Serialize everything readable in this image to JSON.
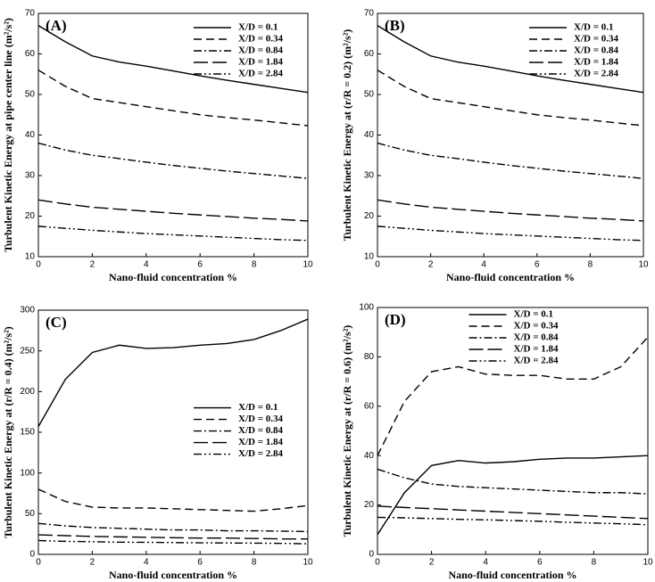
{
  "chart_data": [
    {
      "type": "line",
      "title": "(A)",
      "x_label": "Nano-fluid concentration %",
      "y_label": "Turbulent Kinetic Energy at pipe center line (m²/s²)",
      "x": [
        0,
        1,
        2,
        3,
        4,
        5,
        6,
        7,
        8,
        9,
        10
      ],
      "xlim": [
        0,
        10
      ],
      "xticks": [
        0,
        2,
        4,
        6,
        8,
        10
      ],
      "ylim": [
        10,
        70
      ],
      "yticks": [
        10,
        20,
        30,
        40,
        50,
        60,
        70
      ],
      "legend": "upper right",
      "series": [
        {
          "name": "X/D = 0.1",
          "color": "#000000",
          "dash": "solid",
          "values": [
            67,
            63,
            59.5,
            58,
            57,
            55.8,
            54.6,
            53.5,
            52.5,
            51.5,
            50.5
          ]
        },
        {
          "name": "X/D = 0.34",
          "color": "#000000",
          "dash": "dashed",
          "values": [
            56,
            52,
            49,
            48,
            47,
            46,
            45,
            44.3,
            43.7,
            43,
            42.3
          ]
        },
        {
          "name": "X/D = 0.84",
          "color": "#000000",
          "dash": "dash-dot",
          "values": [
            38,
            36.3,
            35,
            34.2,
            33.3,
            32.5,
            31.8,
            31.1,
            30.5,
            29.9,
            29.3
          ]
        },
        {
          "name": "X/D = 1.84",
          "color": "#000000",
          "dash": "long-dash",
          "values": [
            24,
            23,
            22.2,
            21.7,
            21.2,
            20.7,
            20.3,
            19.9,
            19.5,
            19.2,
            18.8
          ]
        },
        {
          "name": "X/D = 2.84",
          "color": "#000000",
          "dash": "dash-dot-dot",
          "values": [
            17.5,
            17,
            16.5,
            16.1,
            15.7,
            15.4,
            15.1,
            14.8,
            14.5,
            14.2,
            14
          ]
        }
      ]
    },
    {
      "type": "line",
      "title": "(B)",
      "x_label": "Nano-fluid concentration %",
      "y_label": "Turbulent Kinetic Energy at (r/R = 0.2) (m²/s²)",
      "x": [
        0,
        1,
        2,
        3,
        4,
        5,
        6,
        7,
        8,
        9,
        10
      ],
      "xlim": [
        0,
        10
      ],
      "xticks": [
        0,
        2,
        4,
        6,
        8,
        10
      ],
      "ylim": [
        10,
        70
      ],
      "yticks": [
        10,
        20,
        30,
        40,
        50,
        60,
        70
      ],
      "legend": "upper right",
      "series": [
        {
          "name": "X/D = 0.1",
          "color": "#000000",
          "dash": "solid",
          "values": [
            67,
            63,
            59.5,
            58,
            57,
            55.8,
            54.6,
            53.5,
            52.5,
            51.5,
            50.5
          ]
        },
        {
          "name": "X/D = 0.34",
          "color": "#000000",
          "dash": "dashed",
          "values": [
            56,
            52,
            49,
            48,
            47,
            46,
            45,
            44.3,
            43.7,
            43,
            42.3
          ]
        },
        {
          "name": "X/D = 0.84",
          "color": "#000000",
          "dash": "dash-dot",
          "values": [
            38,
            36.3,
            35,
            34.2,
            33.3,
            32.5,
            31.8,
            31.1,
            30.5,
            29.9,
            29.3
          ]
        },
        {
          "name": "X/D = 1.84",
          "color": "#000000",
          "dash": "long-dash",
          "values": [
            24,
            23,
            22.2,
            21.7,
            21.2,
            20.7,
            20.3,
            19.9,
            19.5,
            19.2,
            18.8
          ]
        },
        {
          "name": "X/D = 2.84",
          "color": "#000000",
          "dash": "dash-dot-dot",
          "values": [
            17.5,
            17,
            16.5,
            16.1,
            15.7,
            15.4,
            15.1,
            14.8,
            14.5,
            14.2,
            14
          ]
        }
      ]
    },
    {
      "type": "line",
      "title": "(C)",
      "x_label": "Nano-fluid concentration %",
      "y_label": "Turbulent Kinetic Energy at (r/R = 0.4) (m²/s²)",
      "x": [
        0,
        1,
        2,
        3,
        4,
        5,
        6,
        7,
        8,
        9,
        10
      ],
      "xlim": [
        0,
        10
      ],
      "xticks": [
        0,
        2,
        4,
        6,
        8,
        10
      ],
      "ylim": [
        0,
        300
      ],
      "yticks": [
        0,
        50,
        100,
        150,
        200,
        250,
        300
      ],
      "legend": "center right",
      "series": [
        {
          "name": "X/D = 0.1",
          "color": "#000000",
          "dash": "solid",
          "values": [
            157,
            215,
            248,
            257,
            253,
            254,
            257,
            259,
            264,
            275,
            289
          ]
        },
        {
          "name": "X/D = 0.34",
          "color": "#000000",
          "dash": "dashed",
          "values": [
            80,
            65,
            58,
            57,
            57,
            56,
            55,
            54,
            53,
            56,
            60
          ]
        },
        {
          "name": "X/D = 0.84",
          "color": "#000000",
          "dash": "dash-dot",
          "values": [
            38,
            35,
            33,
            32,
            31,
            30,
            30,
            29,
            29,
            28.5,
            28
          ]
        },
        {
          "name": "X/D = 1.84",
          "color": "#000000",
          "dash": "long-dash",
          "values": [
            24,
            23,
            22,
            21.5,
            21,
            20.5,
            20,
            20,
            19.5,
            19,
            19
          ]
        },
        {
          "name": "X/D = 2.84",
          "color": "#000000",
          "dash": "dash-dot-dot",
          "values": [
            17,
            16,
            15.5,
            15,
            14.8,
            14.5,
            14.2,
            14,
            13.8,
            13.5,
            13
          ]
        }
      ]
    },
    {
      "type": "line",
      "title": "(D)",
      "x_label": "Nano-fluid concentration %",
      "y_label": "Turbulent Kinetic Energy at (r/R = 0.6) (m²/s²)",
      "x": [
        0,
        1,
        2,
        3,
        4,
        5,
        6,
        7,
        8,
        9,
        10
      ],
      "xlim": [
        0,
        10
      ],
      "xticks": [
        0,
        2,
        4,
        6,
        8,
        10
      ],
      "ylim": [
        0,
        100
      ],
      "yticks": [
        0,
        20,
        40,
        60,
        80,
        100
      ],
      "legend": "upper center",
      "series": [
        {
          "name": "X/D = 0.1",
          "color": "#000000",
          "dash": "solid",
          "values": [
            8,
            25,
            36,
            38,
            37,
            37.5,
            38.5,
            39,
            39,
            39.5,
            40
          ]
        },
        {
          "name": "X/D = 0.34",
          "color": "#000000",
          "dash": "dashed",
          "values": [
            40,
            62,
            74,
            76,
            73,
            72.5,
            72.5,
            71,
            71,
            76,
            88
          ]
        },
        {
          "name": "X/D = 0.84",
          "color": "#000000",
          "dash": "dash-dot",
          "values": [
            34.5,
            31,
            28.5,
            27.5,
            27,
            26.5,
            26,
            25.5,
            25,
            25,
            24.5
          ]
        },
        {
          "name": "X/D = 1.84",
          "color": "#000000",
          "dash": "long-dash",
          "values": [
            19.5,
            19,
            18.5,
            18,
            17.5,
            17,
            16.5,
            16,
            15.5,
            15,
            14.5
          ]
        },
        {
          "name": "X/D = 2.84",
          "color": "#000000",
          "dash": "dash-dot-dot",
          "values": [
            15,
            14.8,
            14.5,
            14.2,
            14,
            13.7,
            13.4,
            13,
            12.7,
            12.4,
            12
          ]
        }
      ]
    }
  ]
}
